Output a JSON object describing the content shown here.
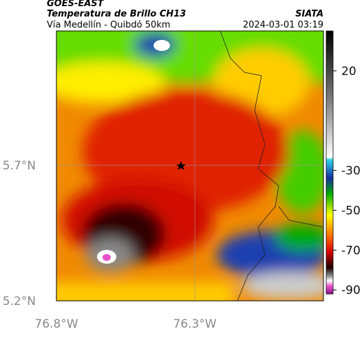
{
  "header": {
    "satellite": "GOES-EAST",
    "product": "Temperatura de Brillo CH13",
    "route": "Vía Medellín - Quibdó 50km",
    "source": "SIATA",
    "timestamp": "2024-03-01 03:19"
  },
  "map": {
    "xlim": [
      -76.8,
      -75.835
    ],
    "ylim": [
      5.2,
      6.195
    ],
    "xticks": [
      {
        "value": -76.8,
        "label": "76.8°W"
      },
      {
        "value": -76.3,
        "label": "76.3°W"
      }
    ],
    "yticks": [
      {
        "value": 5.2,
        "label": "5.2°N"
      },
      {
        "value": 5.7,
        "label": "5.7°N"
      }
    ],
    "grid": true
  },
  "colorbar": {
    "clim": [
      -92,
      40
    ],
    "ticks": [
      20,
      -30,
      -50,
      -70,
      -90
    ]
  }
}
